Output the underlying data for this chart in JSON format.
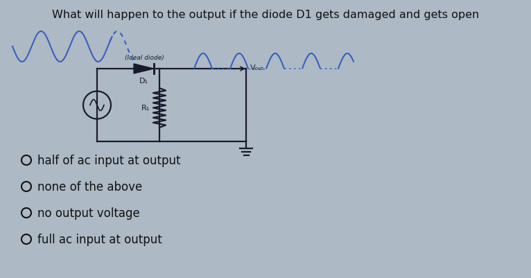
{
  "title": "What will happen to the output if the diode D1 gets damaged and gets open",
  "bg_color": "#adb9c4",
  "title_color": "#111111",
  "title_fontsize": 11.5,
  "options": [
    "half of ac input at output",
    "none of the above",
    "no output voltage",
    "full ac input at output"
  ],
  "option_fontsize": 12,
  "circuit_label_ideal": "(Ideal diode)",
  "circuit_label_d1": "D₁",
  "circuit_label_r1": "R₁",
  "circuit_label_vout": "Vₒᵤₜ",
  "input_wave_color": "#3a5ec0",
  "output_wave_color": "#3a5ec0",
  "circuit_color": "#1a1a2e",
  "label_color": "#1a1a2e"
}
